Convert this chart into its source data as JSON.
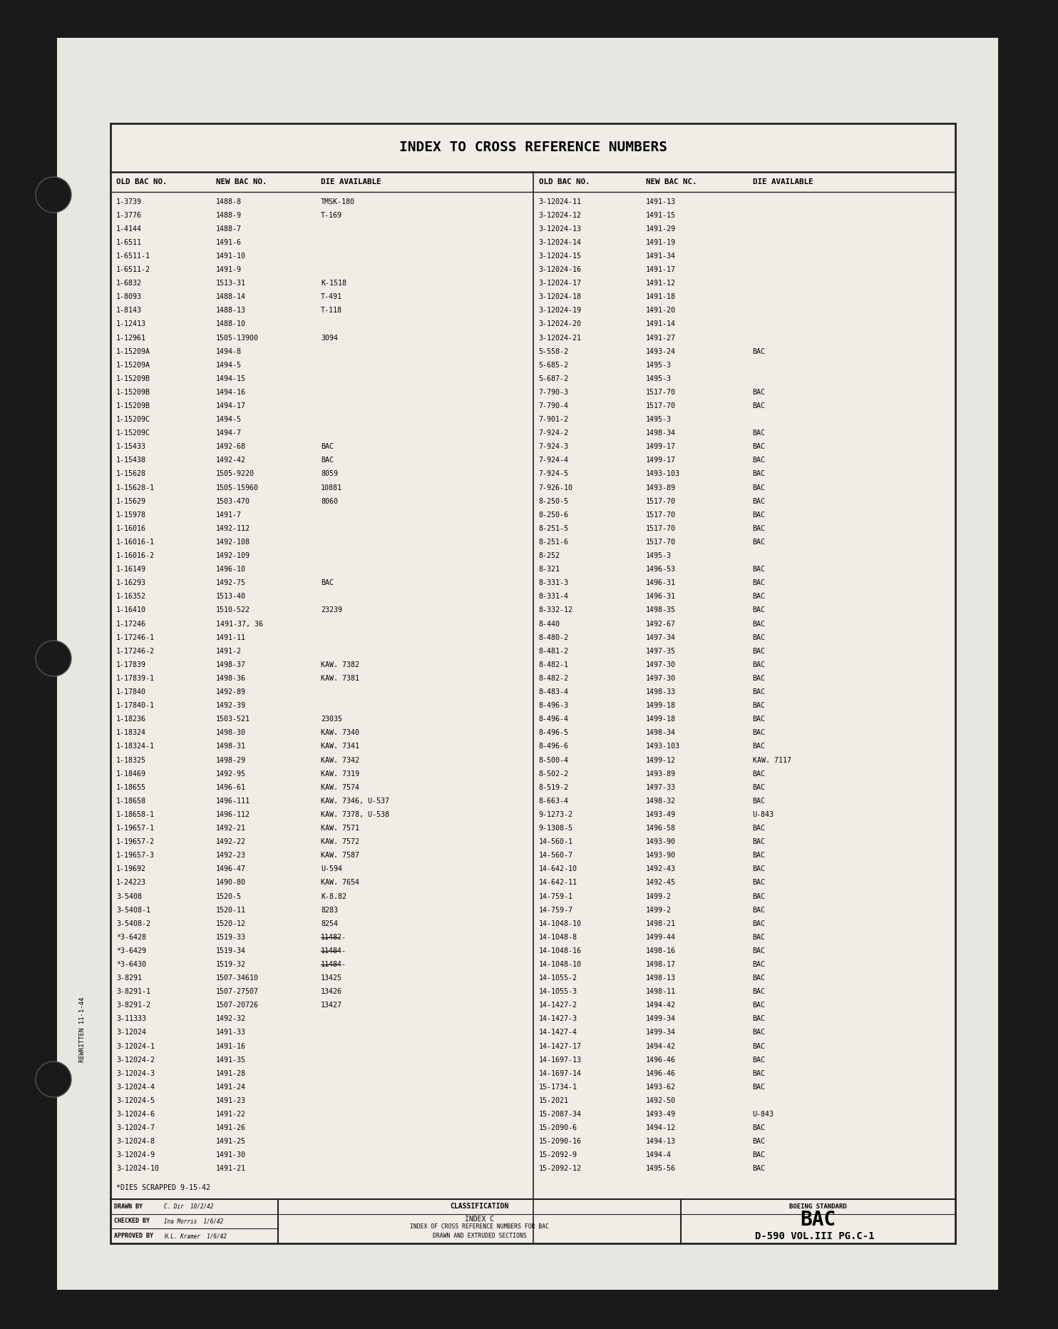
{
  "bg_outer": "#1a1a1a",
  "bg_dark": "#2a2a2a",
  "paper_color": "#e8e6e0",
  "border_color": "#111111",
  "title": "INDEX TO CROSS REFERENCE NUMBERS",
  "col_headers": [
    "OLD BAC NO.",
    "NEW BAC NO.",
    "DIE AVAILABLE",
    "OLD BAC NO.",
    "NEW BAC NC.",
    "DIE AVAILABLE"
  ],
  "left_data": [
    [
      "1-3739",
      "1488-8",
      "TMSK-180"
    ],
    [
      "1-3776",
      "1488-9",
      "T-169"
    ],
    [
      "1-4144",
      "1488-7",
      ""
    ],
    [
      "1-6511",
      "1491-6",
      ""
    ],
    [
      "1-6511-1",
      "1491-10",
      ""
    ],
    [
      "1-6511-2",
      "1491-9",
      ""
    ],
    [
      "1-6832",
      "1513-31",
      "K-1518"
    ],
    [
      "1-8093",
      "1488-14",
      "T-491"
    ],
    [
      "1-8143",
      "1488-13",
      "T-118"
    ],
    [
      "1-12413",
      "1488-10",
      ""
    ],
    [
      "1-12961",
      "1505-13900",
      "3094"
    ],
    [
      "1-15209A",
      "1494-8",
      ""
    ],
    [
      "1-15209A",
      "1494-5",
      ""
    ],
    [
      "1-15209B",
      "1494-15",
      ""
    ],
    [
      "1-15209B",
      "1494-16",
      ""
    ],
    [
      "1-15209B",
      "1494-17",
      ""
    ],
    [
      "1-15209C",
      "1494-5",
      ""
    ],
    [
      "1-15209C",
      "1494-7",
      ""
    ],
    [
      "1-15433",
      "1492-68",
      "BAC"
    ],
    [
      "1-15438",
      "1492-42",
      "BAC"
    ],
    [
      "1-15628",
      "1505-9220",
      "8059"
    ],
    [
      "1-15628-1",
      "1505-15960",
      "10881"
    ],
    [
      "1-15629",
      "1503-470",
      "8060"
    ],
    [
      "1-15978",
      "1491-7",
      ""
    ],
    [
      "1-16016",
      "1492-112",
      ""
    ],
    [
      "1-16016-1",
      "1492-108",
      ""
    ],
    [
      "1-16016-2",
      "1492-109",
      ""
    ],
    [
      "1-16149",
      "1496-10",
      ""
    ],
    [
      "1-16293",
      "1492-75",
      "BAC"
    ],
    [
      "1-16352",
      "1513-40",
      ""
    ],
    [
      "1-16410",
      "1510-522",
      "23239"
    ],
    [
      "1-17246",
      "1491-37, 36",
      ""
    ],
    [
      "1-17246-1",
      "1491-11",
      ""
    ],
    [
      "1-17246-2",
      "1491-2",
      ""
    ],
    [
      "1-17839",
      "1498-37",
      "KAW. 7382"
    ],
    [
      "1-17839-1",
      "1498-36",
      "KAW. 7381"
    ],
    [
      "1-17840",
      "1492-89",
      ""
    ],
    [
      "1-17840-1",
      "1492-39",
      ""
    ],
    [
      "1-18236",
      "1503-521",
      "23035"
    ],
    [
      "1-18324",
      "1498-30",
      "KAW. 7340"
    ],
    [
      "1-18324-1",
      "1498-31",
      "KAW. 7341"
    ],
    [
      "1-18325",
      "1498-29",
      "KAW. 7342"
    ],
    [
      "1-18469",
      "1492-95",
      "KAW. 7319"
    ],
    [
      "1-18655",
      "1496-61",
      "KAW. 7574"
    ],
    [
      "1-18658",
      "1496-111",
      "KAW. 7346, U-537"
    ],
    [
      "1-18658-1",
      "1496-112",
      "KAW. 7378, U-538"
    ],
    [
      "1-19657-1",
      "1492-21",
      "KAW. 7571"
    ],
    [
      "1-19657-2",
      "1492-22",
      "KAW. 7572"
    ],
    [
      "1-19657-3",
      "1492-23",
      "KAW. 7587"
    ],
    [
      "1-19692",
      "1496-47",
      "U-594"
    ],
    [
      "1-24223",
      "1490-80",
      "KAW. 7654"
    ],
    [
      "3-5408",
      "1520-5",
      "K-8.82"
    ],
    [
      "3-5408-1",
      "1520-11",
      "8283"
    ],
    [
      "3-5408-2",
      "1520-12",
      "8254"
    ],
    [
      "*3-6428",
      "1519-33",
      "11482-"
    ],
    [
      "*3-6429",
      "1519-34",
      "11484-"
    ],
    [
      "*3-6430",
      "1519-32",
      "11484-"
    ],
    [
      "3-8291",
      "1507-34610",
      "13425"
    ],
    [
      "3-8291-1",
      "1507-27507",
      "13426"
    ],
    [
      "3-8291-2",
      "1507-20726",
      "13427"
    ],
    [
      "3-11333",
      "1492-32",
      ""
    ],
    [
      "3-12024",
      "1491-33",
      ""
    ],
    [
      "3-12024-1",
      "1491-16",
      ""
    ],
    [
      "3-12024-2",
      "1491-35",
      ""
    ],
    [
      "3-12024-3",
      "1491-28",
      ""
    ],
    [
      "3-12024-4",
      "1491-24",
      ""
    ],
    [
      "3-12024-5",
      "1491-23",
      ""
    ],
    [
      "3-12024-6",
      "1491-22",
      ""
    ],
    [
      "3-12024-7",
      "1491-26",
      ""
    ],
    [
      "3-12024-8",
      "1491-25",
      ""
    ],
    [
      "3-12024-9",
      "1491-30",
      ""
    ],
    [
      "3-12024-10",
      "1491-21",
      ""
    ]
  ],
  "right_data": [
    [
      "3-12024-11",
      "1491-13",
      ""
    ],
    [
      "3-12024-12",
      "1491-15",
      ""
    ],
    [
      "3-12024-13",
      "1491-29",
      ""
    ],
    [
      "3-12024-14",
      "1491-19",
      ""
    ],
    [
      "3-12024-15",
      "1491-34",
      ""
    ],
    [
      "3-12024-16",
      "1491-17",
      ""
    ],
    [
      "3-12024-17",
      "1491-12",
      ""
    ],
    [
      "3-12024-18",
      "1491-18",
      ""
    ],
    [
      "3-12024-19",
      "1491-20",
      ""
    ],
    [
      "3-12024-20",
      "1491-14",
      ""
    ],
    [
      "3-12024-21",
      "1491-27",
      ""
    ],
    [
      "5-558-2",
      "1493-24",
      "BAC"
    ],
    [
      "5-685-2",
      "1495-3",
      ""
    ],
    [
      "5-687-2",
      "1495-3",
      ""
    ],
    [
      "7-790-3",
      "1517-70",
      "BAC"
    ],
    [
      "7-790-4",
      "1517-70",
      "BAC"
    ],
    [
      "7-901-2",
      "1495-3",
      ""
    ],
    [
      "7-924-2",
      "1498-34",
      "BAC"
    ],
    [
      "7-924-3",
      "1499-17",
      "BAC"
    ],
    [
      "7-924-4",
      "1499-17",
      "BAC"
    ],
    [
      "7-924-5",
      "1493-103",
      "BAC"
    ],
    [
      "7-926-10",
      "1493-89",
      "BAC"
    ],
    [
      "8-250-5",
      "1517-70",
      "BAC"
    ],
    [
      "8-250-6",
      "1517-70",
      "BAC"
    ],
    [
      "8-251-5",
      "1517-70",
      "BAC"
    ],
    [
      "8-251-6",
      "1517-70",
      "BAC"
    ],
    [
      "8-252",
      "1495-3",
      ""
    ],
    [
      "8-321",
      "1496-53",
      "BAC"
    ],
    [
      "8-331-3",
      "1496-31",
      "BAC"
    ],
    [
      "8-331-4",
      "1496-31",
      "BAC"
    ],
    [
      "8-332-12",
      "1498-35",
      "BAC"
    ],
    [
      "8-440",
      "1492-67",
      "BAC"
    ],
    [
      "8-480-2",
      "1497-34",
      "BAC"
    ],
    [
      "8-481-2",
      "1497-35",
      "BAC"
    ],
    [
      "8-482-1",
      "1497-30",
      "BAC"
    ],
    [
      "8-482-2",
      "1497-30",
      "BAC"
    ],
    [
      "8-483-4",
      "1498-33",
      "BAC"
    ],
    [
      "8-496-3",
      "1499-18",
      "BAC"
    ],
    [
      "8-496-4",
      "1499-18",
      "BAC"
    ],
    [
      "8-496-5",
      "1498-34",
      "BAC"
    ],
    [
      "8-496-6",
      "1493-103",
      "BAC"
    ],
    [
      "8-500-4",
      "1499-12",
      "KAW. 7117"
    ],
    [
      "8-502-2",
      "1493-89",
      "BAC"
    ],
    [
      "8-519-2",
      "1497-33",
      "BAC"
    ],
    [
      "8-663-4",
      "1498-32",
      "BAC"
    ],
    [
      "9-1273-2",
      "1493-49",
      "U-843"
    ],
    [
      "9-1308-5",
      "1496-58",
      "BAC"
    ],
    [
      "14-560-1",
      "1493-90",
      "BAC"
    ],
    [
      "14-560-7",
      "1493-90",
      "BAC"
    ],
    [
      "14-642-10",
      "1492-43",
      "BAC"
    ],
    [
      "14-642-11",
      "1492-45",
      "BAC"
    ],
    [
      "14-759-1",
      "1499-2",
      "BAC"
    ],
    [
      "14-759-7",
      "1499-2",
      "BAC"
    ],
    [
      "14-1048-10",
      "1498-21",
      "BAC"
    ],
    [
      "14-1048-8",
      "1499-44",
      "BAC"
    ],
    [
      "14-1048-16",
      "1498-16",
      "BAC"
    ],
    [
      "14-1048-10",
      "1498-17",
      "BAC"
    ],
    [
      "14-1055-2",
      "1498-13",
      "BAC"
    ],
    [
      "14-1055-3",
      "1498-11",
      "BAC"
    ],
    [
      "14-1427-2",
      "1494-42",
      "BAC"
    ],
    [
      "14-1427-3",
      "1499-34",
      "BAC"
    ],
    [
      "14-1427-4",
      "1499-34",
      "BAC"
    ],
    [
      "14-1427-17",
      "1494-42",
      "BAC"
    ],
    [
      "14-1697-13",
      "1496-46",
      "BAC"
    ],
    [
      "14-1697-14",
      "1496-46",
      "BAC"
    ],
    [
      "15-1734-1",
      "1493-62",
      "BAC"
    ],
    [
      "15-2021",
      "1492-50",
      ""
    ],
    [
      "15-2087-34",
      "1493-49",
      "U-843"
    ],
    [
      "15-2090-6",
      "1494-12",
      "BAC"
    ],
    [
      "15-2090-16",
      "1494-13",
      "BAC"
    ],
    [
      "15-2092-9",
      "1494-4",
      "BAC"
    ],
    [
      "15-2092-12",
      "1495-56",
      "BAC"
    ]
  ],
  "footer_note": "*DIES SCRAPPED 9-15-42",
  "rewritten": "REWRITTEN 11-1-44",
  "doc_number": "D-590 VOL.III PG.C-1",
  "strikethrough_rows": [
    54,
    55,
    56
  ]
}
